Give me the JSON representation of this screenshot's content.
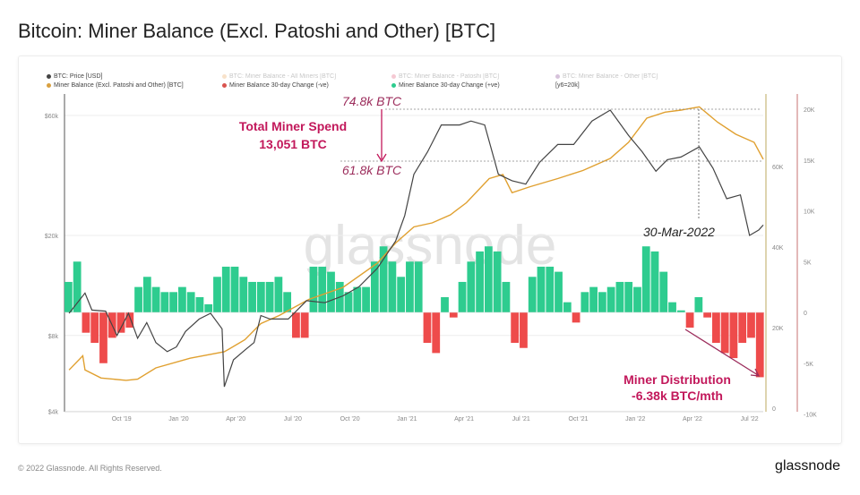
{
  "title": "Bitcoin: Miner Balance (Excl. Patoshi and Other) [BTC]",
  "footer": {
    "copyright": "© 2022 Glassnode. All Rights Reserved.",
    "logo": "glassnode"
  },
  "watermark": "glassnode",
  "legend": [
    {
      "label": "BTC: Price [USD]",
      "color": "#444444",
      "faded": false
    },
    {
      "label": "BTC: Miner Balance - All Miners [BTC]",
      "color": "#e8a050",
      "faded": true
    },
    {
      "label": "BTC: Miner Balance - Patoshi [BTC]",
      "color": "#e05070",
      "faded": true
    },
    {
      "label": "BTC: Miner Balance - Other [BTC]",
      "color": "#7a3a8a",
      "faded": true
    },
    {
      "label": "Miner Balance (Excl. Patoshi and Other) [BTC]",
      "color": "#d9a040",
      "faded": false
    },
    {
      "label": "Miner Balance 30-day Change (-ve)",
      "color": "#d9534f",
      "faded": false
    },
    {
      "label": "Miner Balance 30-day Change (+ve)",
      "color": "#2ecc8f",
      "faded": false
    },
    {
      "label": "[y6=20k]",
      "color": "",
      "faded": false
    }
  ],
  "annotations": {
    "peak": "74.8k BTC",
    "current": "61.8k BTC",
    "spend_line1": "Total Miner Spend",
    "spend_line2": "13,051 BTC",
    "date": "30-Mar-2022",
    "dist_line1": "Miner Distribution",
    "dist_line2": "-6.38k BTC/mth",
    "accent": "#c2185b"
  },
  "chart_data": {
    "type": "line",
    "title": "Bitcoin: Miner Balance (Excl. Patoshi and Other) [BTC]",
    "x_ticks": [
      {
        "label": "Oct '19",
        "x": 2019.75
      },
      {
        "label": "Jan '20",
        "x": 2020.0
      },
      {
        "label": "Apr '20",
        "x": 2020.25
      },
      {
        "label": "Jul '20",
        "x": 2020.5
      },
      {
        "label": "Oct '20",
        "x": 2020.75
      },
      {
        "label": "Jan '21",
        "x": 2021.0
      },
      {
        "label": "Apr '21",
        "x": 2021.25
      },
      {
        "label": "Jul '21",
        "x": 2021.5
      },
      {
        "label": "Oct '21",
        "x": 2021.75
      },
      {
        "label": "Jan '22",
        "x": 2022.0
      },
      {
        "label": "Apr '22",
        "x": 2022.25
      },
      {
        "label": "Jul '22",
        "x": 2022.5
      }
    ],
    "xlim": [
      2019.5,
      2022.56
    ],
    "y_left": {
      "scale": "log",
      "ticks": [
        {
          "label": "$60k",
          "v": 60000
        },
        {
          "label": "$20k",
          "v": 20000
        },
        {
          "label": "$8k",
          "v": 8000
        },
        {
          "label": "$4k",
          "v": 4000
        }
      ]
    },
    "y_mid": {
      "ticks": [
        {
          "label": "60K",
          "v": 60
        },
        {
          "label": "40K",
          "v": 40
        },
        {
          "label": "20K",
          "v": 20
        },
        {
          "label": "0",
          "v": 0
        }
      ]
    },
    "y_right": {
      "ticks": [
        {
          "label": "20K",
          "v": 20
        },
        {
          "label": "15K",
          "v": 15
        },
        {
          "label": "10K",
          "v": 10
        },
        {
          "label": "5K",
          "v": 5
        },
        {
          "label": "0",
          "v": 0
        },
        {
          "label": "-5K",
          "v": -5
        },
        {
          "label": "-10K",
          "v": -10
        }
      ]
    },
    "price": [
      [
        2019.52,
        9800
      ],
      [
        2019.59,
        11800
      ],
      [
        2019.62,
        10100
      ],
      [
        2019.68,
        10000
      ],
      [
        2019.73,
        8000
      ],
      [
        2019.78,
        9800
      ],
      [
        2019.82,
        7800
      ],
      [
        2019.86,
        9000
      ],
      [
        2019.9,
        7500
      ],
      [
        2019.95,
        6900
      ],
      [
        2019.99,
        7200
      ],
      [
        2020.03,
        8300
      ],
      [
        2020.09,
        9300
      ],
      [
        2020.14,
        9800
      ],
      [
        2020.19,
        8500
      ],
      [
        2020.2,
        5000
      ],
      [
        2020.24,
        6400
      ],
      [
        2020.29,
        7000
      ],
      [
        2020.33,
        7500
      ],
      [
        2020.36,
        9600
      ],
      [
        2020.4,
        9300
      ],
      [
        2020.48,
        9300
      ],
      [
        2020.56,
        11000
      ],
      [
        2020.64,
        10800
      ],
      [
        2020.72,
        11500
      ],
      [
        2020.79,
        12500
      ],
      [
        2020.87,
        14800
      ],
      [
        2020.95,
        19000
      ],
      [
        2020.99,
        24000
      ],
      [
        2021.03,
        35000
      ],
      [
        2021.09,
        43000
      ],
      [
        2021.15,
        55000
      ],
      [
        2021.23,
        55000
      ],
      [
        2021.28,
        57000
      ],
      [
        2021.34,
        55000
      ],
      [
        2021.4,
        35000
      ],
      [
        2021.46,
        33000
      ],
      [
        2021.52,
        32000
      ],
      [
        2021.58,
        39000
      ],
      [
        2021.66,
        46000
      ],
      [
        2021.73,
        46000
      ],
      [
        2021.81,
        57000
      ],
      [
        2021.89,
        63000
      ],
      [
        2021.97,
        50000
      ],
      [
        2022.03,
        43000
      ],
      [
        2022.09,
        36000
      ],
      [
        2022.14,
        40000
      ],
      [
        2022.2,
        41000
      ],
      [
        2022.28,
        45000
      ],
      [
        2022.34,
        37000
      ],
      [
        2022.4,
        28000
      ],
      [
        2022.46,
        29000
      ],
      [
        2022.5,
        20000
      ],
      [
        2022.54,
        21000
      ],
      [
        2022.56,
        22000
      ]
    ],
    "miner_balance_k": [
      [
        2019.52,
        9.5
      ],
      [
        2019.58,
        13
      ],
      [
        2019.59,
        9.5
      ],
      [
        2019.66,
        7.5
      ],
      [
        2019.77,
        6.9
      ],
      [
        2019.82,
        7.2
      ],
      [
        2019.9,
        10
      ],
      [
        2020.05,
        12.4
      ],
      [
        2020.2,
        14
      ],
      [
        2020.29,
        17
      ],
      [
        2020.36,
        21
      ],
      [
        2020.44,
        23
      ],
      [
        2020.57,
        27
      ],
      [
        2020.72,
        30
      ],
      [
        2020.87,
        36
      ],
      [
        2020.95,
        41
      ],
      [
        2021.03,
        45
      ],
      [
        2021.11,
        46
      ],
      [
        2021.19,
        48
      ],
      [
        2021.26,
        51
      ],
      [
        2021.36,
        57
      ],
      [
        2021.42,
        58
      ],
      [
        2021.46,
        53.5
      ],
      [
        2021.54,
        55
      ],
      [
        2021.66,
        57
      ],
      [
        2021.77,
        59
      ],
      [
        2021.89,
        62
      ],
      [
        2021.97,
        66
      ],
      [
        2022.05,
        72
      ],
      [
        2022.13,
        73.5
      ],
      [
        2022.2,
        74
      ],
      [
        2022.28,
        74.8
      ],
      [
        2022.36,
        71
      ],
      [
        2022.44,
        68
      ],
      [
        2022.52,
        66
      ],
      [
        2022.56,
        61.8
      ]
    ],
    "change_30d_k": {
      "start": 2019.5,
      "step_days": 14,
      "values": [
        3,
        5,
        -2,
        -3,
        -5,
        -2.5,
        -2,
        -1.5,
        2.5,
        3.5,
        2.5,
        2,
        2,
        2.5,
        2,
        1.5,
        0.8,
        3.5,
        4.5,
        4.5,
        3.5,
        3,
        3,
        3,
        3.5,
        2,
        -2.5,
        -2.5,
        4.5,
        4.5,
        4,
        3,
        2,
        2.5,
        2.5,
        5,
        6.5,
        5,
        3.5,
        5,
        5,
        -3,
        -4,
        1.5,
        -0.5,
        3,
        5,
        6,
        6.5,
        6,
        3,
        -3,
        -3.5,
        3.5,
        4.5,
        4.5,
        4,
        1,
        -1,
        2,
        2.5,
        2,
        2.5,
        3,
        3,
        2.5,
        6.5,
        6,
        4,
        1,
        0.2,
        -1.5,
        1.5,
        -0.5,
        -3,
        -4,
        -4.5,
        -3,
        -2.5,
        -6.38
      ]
    }
  }
}
